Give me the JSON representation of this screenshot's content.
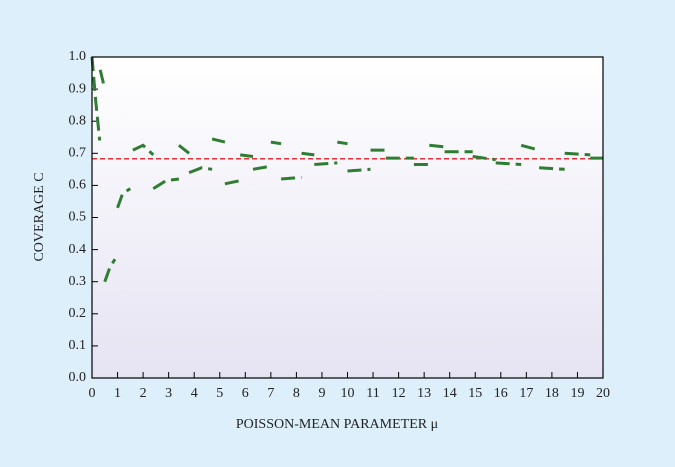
{
  "chart_data": {
    "type": "line",
    "xlabel": "POISSON-MEAN PARAMETER μ",
    "ylabel": "COVERAGE C",
    "x": [
      0,
      0.15,
      0.3,
      null,
      0.32,
      0.5,
      null,
      0.5,
      0.7,
      0.9,
      null,
      1.0,
      1.2,
      1.5,
      null,
      1.6,
      2.0,
      2.4,
      null,
      2.4,
      2.9,
      3.4,
      null,
      3.4,
      3.8,
      null,
      3.8,
      4.3,
      4.7,
      null,
      4.7,
      5.2,
      null,
      5.2,
      5.8,
      null,
      5.8,
      6.3,
      null,
      6.3,
      7.0,
      null,
      7.0,
      7.4,
      null,
      7.4,
      8.2,
      null,
      8.2,
      8.7,
      null,
      8.7,
      9.6,
      null,
      9.6,
      10.0,
      null,
      10.0,
      10.9,
      null,
      10.9,
      11.5,
      null,
      11.5,
      12.6,
      null,
      12.6,
      13.2,
      null,
      13.2,
      13.8,
      null,
      13.8,
      14.9,
      null,
      14.9,
      15.8,
      null,
      15.8,
      16.8,
      null,
      16.8,
      17.5,
      null,
      17.5,
      18.5,
      null,
      18.5,
      19.5,
      null,
      19.5,
      20
    ],
    "series": [
      {
        "color": "#2e7d32",
        "values": [
          1.0,
          0.86,
          0.74,
          null,
          0.96,
          0.9,
          null,
          0.3,
          0.345,
          0.37,
          null,
          0.53,
          0.575,
          0.59,
          null,
          0.71,
          0.725,
          0.695,
          null,
          0.59,
          0.615,
          0.62,
          null,
          0.725,
          0.7,
          null,
          0.64,
          0.655,
          0.65,
          null,
          0.745,
          0.735,
          null,
          0.605,
          0.615,
          null,
          0.695,
          0.69,
          null,
          0.65,
          0.66,
          null,
          0.735,
          0.73,
          null,
          0.62,
          0.625,
          null,
          0.7,
          0.695,
          null,
          0.665,
          0.67,
          null,
          0.735,
          0.73,
          null,
          0.645,
          0.65,
          null,
          0.71,
          0.71,
          null,
          0.685,
          0.685,
          null,
          0.665,
          0.665,
          null,
          0.725,
          0.72,
          null,
          0.705,
          0.705,
          null,
          0.69,
          0.68,
          null,
          0.67,
          0.665,
          null,
          0.725,
          0.71,
          null,
          0.655,
          0.65,
          null,
          0.7,
          0.695,
          null,
          0.685,
          0.685
        ]
      }
    ],
    "hline": {
      "value": 0.683,
      "color": "#e0303a"
    },
    "xlim": [
      0,
      20
    ],
    "xticks": [
      0,
      1,
      2,
      3,
      4,
      5,
      6,
      7,
      8,
      9,
      10,
      11,
      12,
      13,
      14,
      15,
      16,
      17,
      18,
      19,
      20
    ],
    "ylim": [
      0,
      1
    ],
    "yticks": [
      {
        "value": 0,
        "label": "0.0"
      },
      0.1,
      0.2,
      0.3,
      0.4,
      0.5,
      0.6,
      0.7,
      0.8,
      0.9,
      {
        "value": 1,
        "label": "1.0"
      }
    ]
  }
}
